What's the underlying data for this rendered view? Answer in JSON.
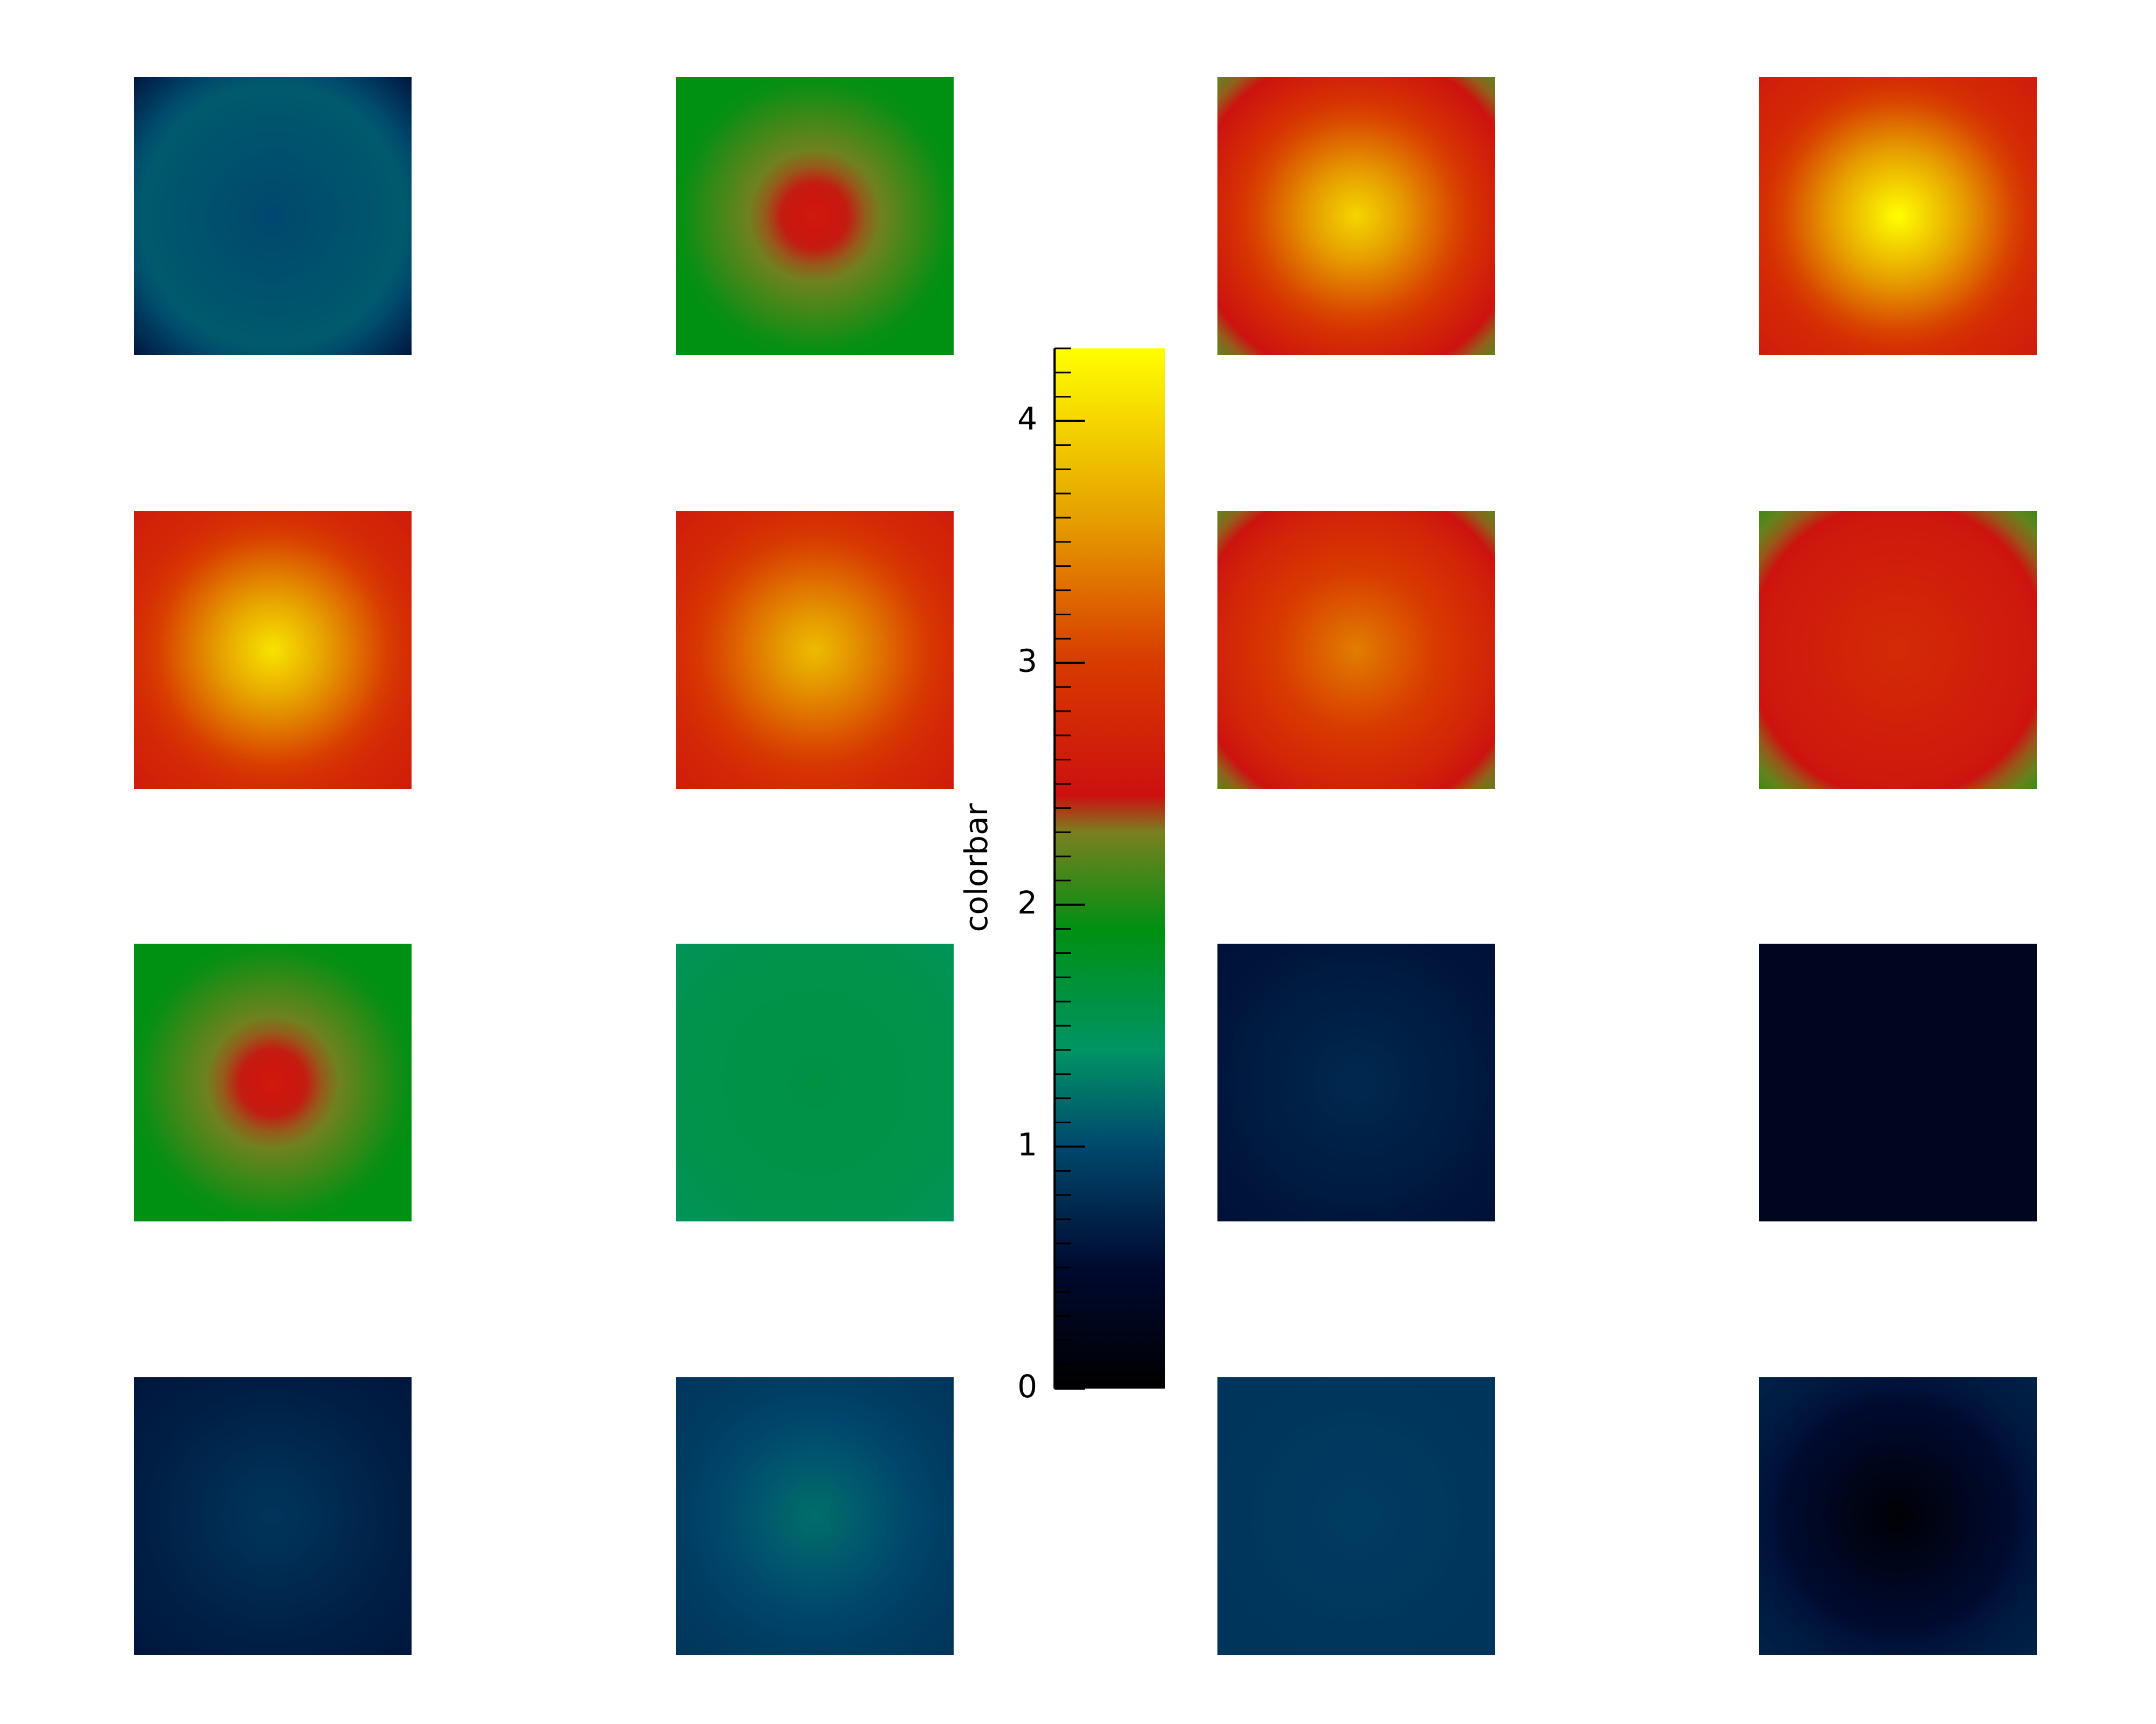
{
  "chart_data": {
    "type": "heatmap-grid",
    "colorbar_label": "colorbar",
    "ylim": [
      0,
      4.3
    ],
    "yticks": [
      0,
      1,
      2,
      3,
      4
    ],
    "minor_yticks": [
      0.1,
      0.2,
      0.3,
      0.4,
      0.5,
      0.6,
      0.7,
      0.8,
      0.9,
      1.1,
      1.2,
      1.3,
      1.4,
      1.5,
      1.6,
      1.7,
      1.8,
      1.9,
      2.1,
      2.2,
      2.3,
      2.4,
      2.5,
      2.6,
      2.7,
      2.8,
      2.9,
      3.1,
      3.2,
      3.3,
      3.4,
      3.5,
      3.6,
      3.7,
      3.8,
      3.9,
      4.1,
      4.2,
      4.3
    ],
    "colormap": [
      [
        0,
        "#000000"
      ],
      [
        0.5,
        "#000a30"
      ],
      [
        1.0,
        "#00486e"
      ],
      [
        1.4,
        "#009464"
      ],
      [
        1.9,
        "#009012"
      ],
      [
        2.3,
        "#7a8020"
      ],
      [
        2.45,
        "#cc1010"
      ],
      [
        3.0,
        "#d83a00"
      ],
      [
        3.6,
        "#e6a000"
      ],
      [
        4.3,
        "#ffff00"
      ]
    ],
    "panels": [
      {
        "center": 1.0,
        "edge": 1.1,
        "corner": 0.6
      },
      {
        "center": 2.6,
        "edge": 1.9,
        "corner": 1.9
      },
      {
        "center": 4.0,
        "edge": 2.7,
        "corner": 2.2
      },
      {
        "center": 4.3,
        "edge": 2.8,
        "corner": 2.6
      },
      {
        "center": 4.1,
        "edge": 2.8,
        "corner": 2.6
      },
      {
        "center": 3.8,
        "edge": 2.8,
        "corner": 2.6
      },
      {
        "center": 3.4,
        "edge": 2.7,
        "corner": 2.2
      },
      {
        "center": 2.8,
        "edge": 2.55,
        "corner": 2.1
      },
      {
        "center": 2.6,
        "edge": 1.9,
        "corner": 1.9
      },
      {
        "center": 1.6,
        "edge": 1.55,
        "corner": 1.45
      },
      {
        "center": 0.75,
        "edge": 0.6,
        "corner": 0.55
      },
      {
        "center": 0.3,
        "edge": 0.3,
        "corner": 0.3
      },
      {
        "center": 0.85,
        "edge": 0.65,
        "corner": 0.6
      },
      {
        "center": 1.2,
        "edge": 0.9,
        "corner": 0.85
      },
      {
        "center": 0.9,
        "edge": 0.85,
        "corner": 0.85
      },
      {
        "center": 0.05,
        "edge": 0.6,
        "corner": 0.7
      }
    ]
  }
}
